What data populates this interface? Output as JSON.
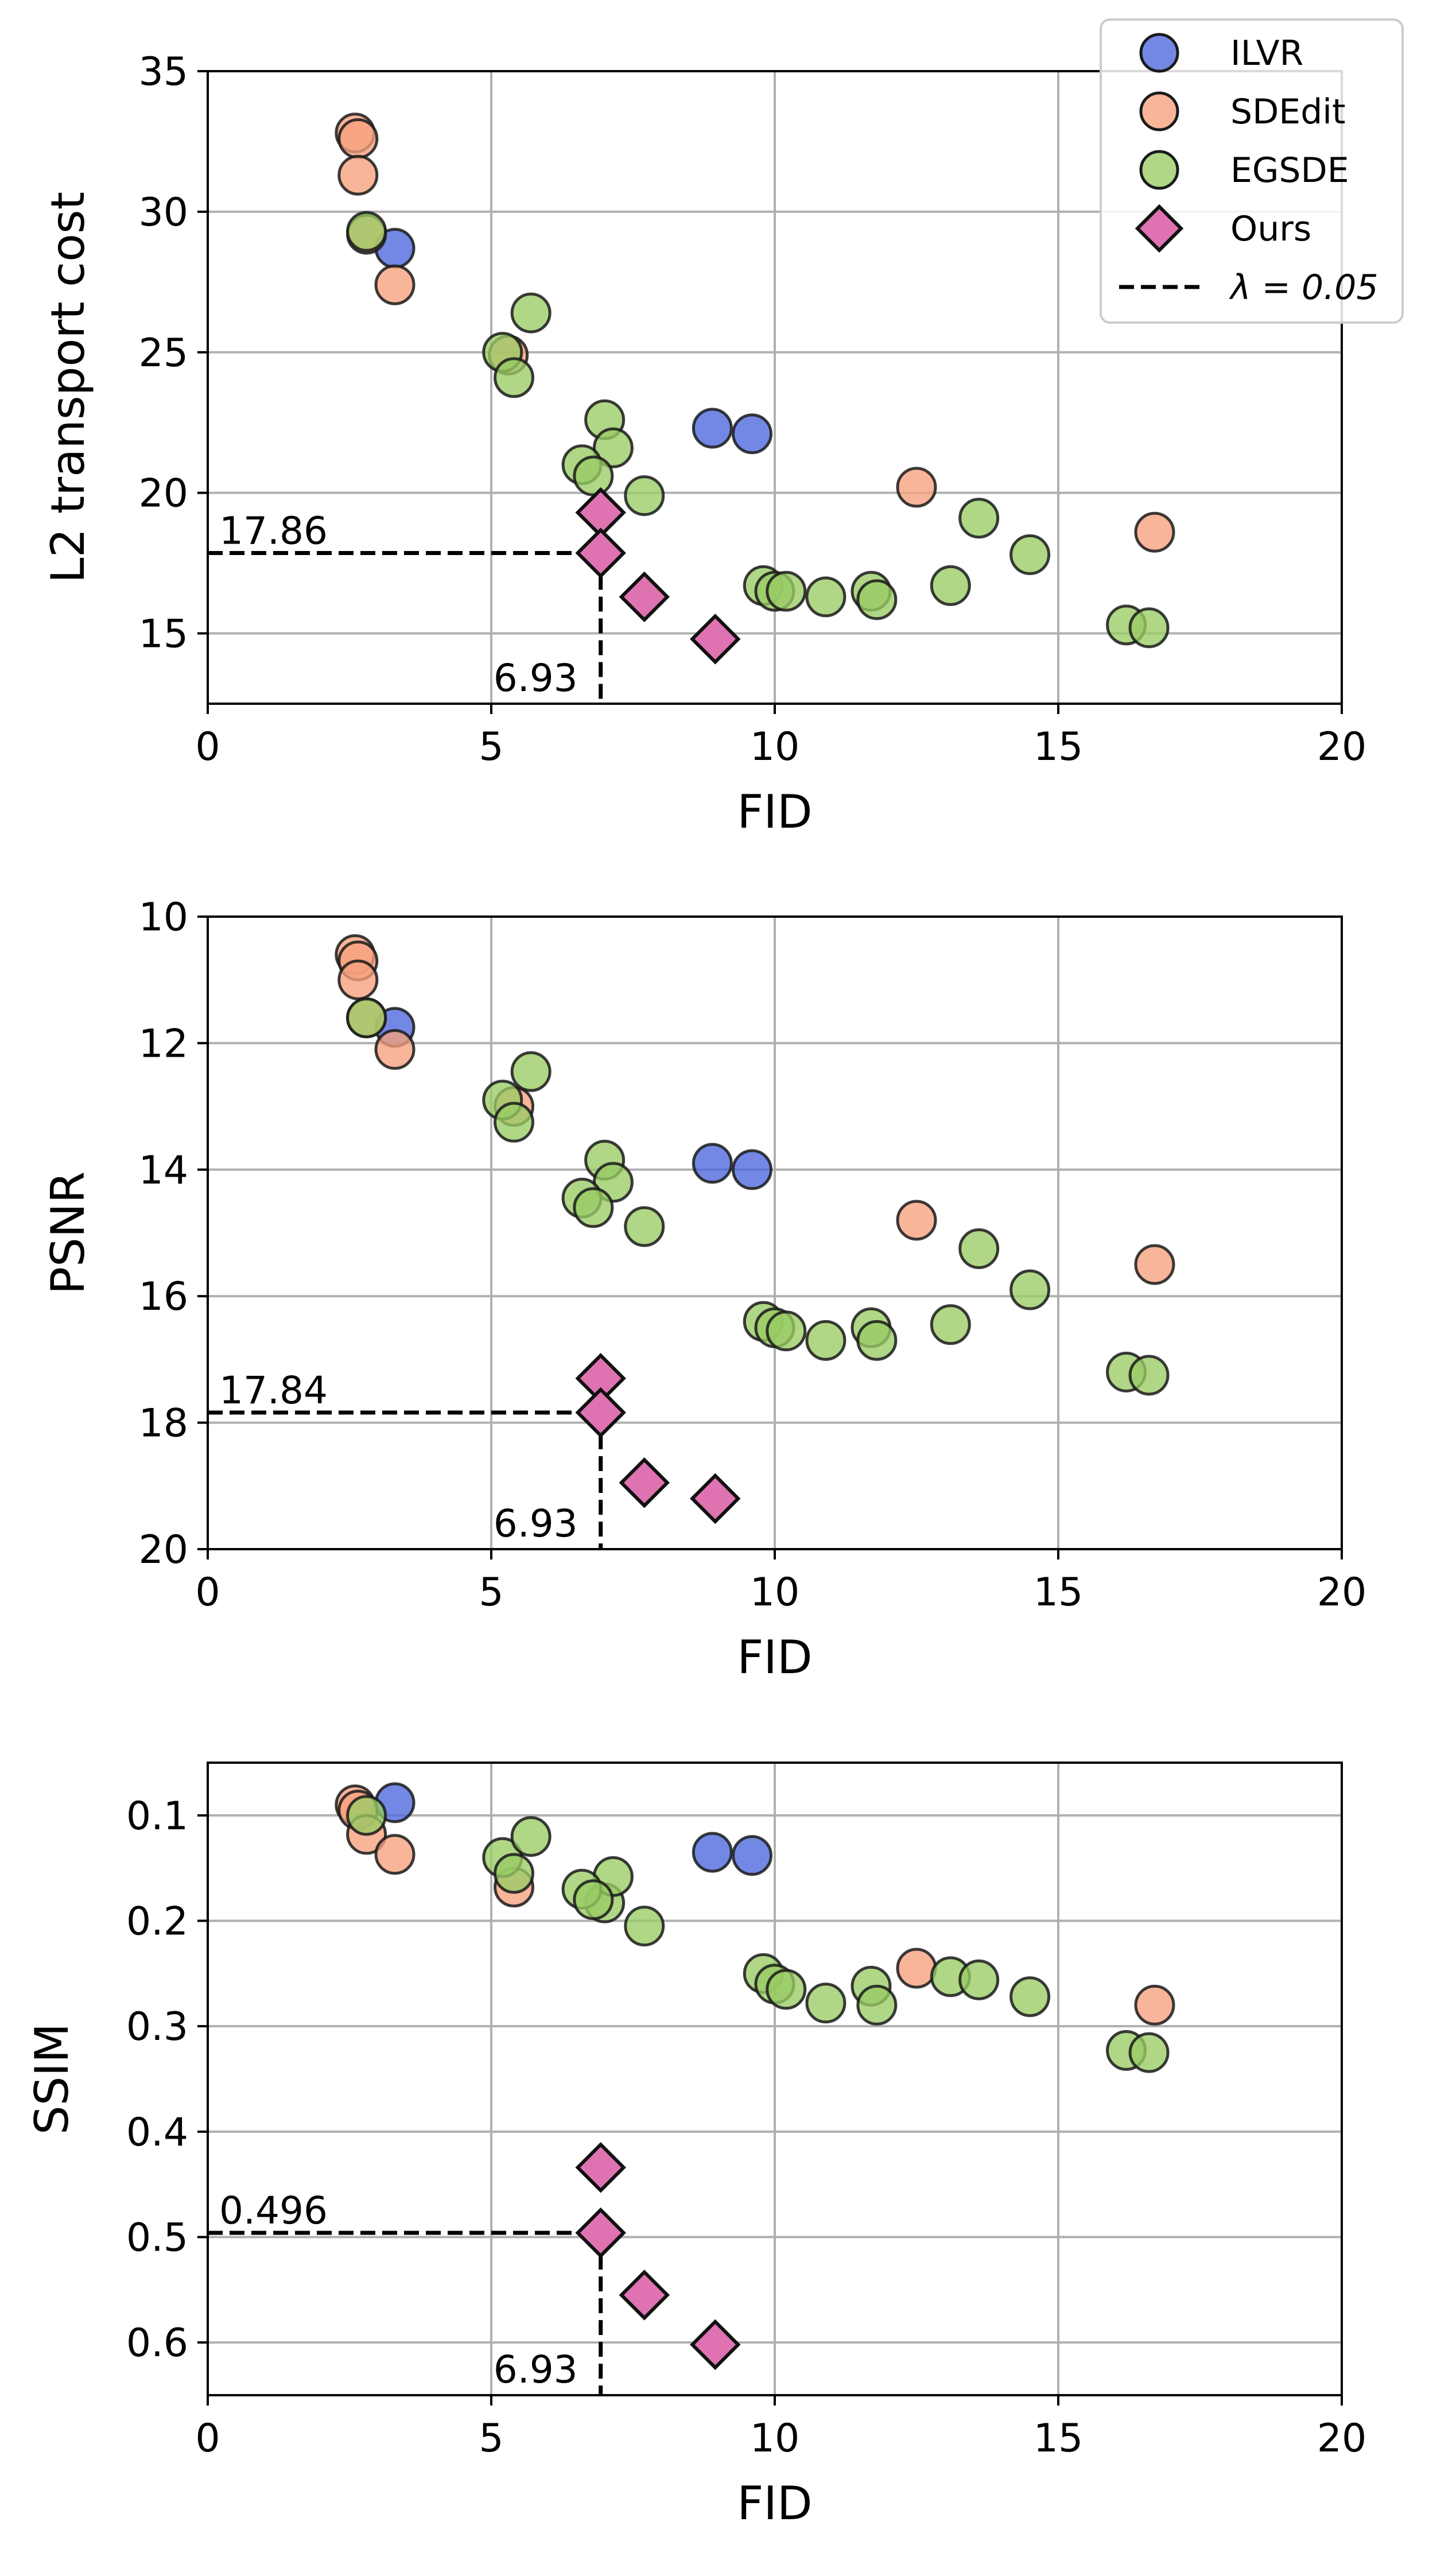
{
  "colors": {
    "ILVR": "#4b66dd",
    "SDEdit": "#f7a07e",
    "EGSDE": "#98cc64",
    "Ours": "#df73b2",
    "grid": "#b0b0b0",
    "guide": "#000000"
  },
  "legend": {
    "entries": [
      {
        "label": "ILVR",
        "marker": "circle",
        "color_key": "ILVR"
      },
      {
        "label": "SDEdit",
        "marker": "circle",
        "color_key": "SDEdit"
      },
      {
        "label": "EGSDE",
        "marker": "circle",
        "color_key": "EGSDE"
      },
      {
        "label": "Ours",
        "marker": "diamond",
        "color_key": "Ours"
      },
      {
        "label": "λ = 0.05",
        "marker": "dashed-line",
        "color_key": "guide"
      }
    ],
    "placement": "top-right"
  },
  "chart_data": [
    {
      "type": "scatter",
      "xlabel": "FID",
      "ylabel": "L2 transport cost",
      "xlim": [
        0,
        20
      ],
      "ylim": [
        12.5,
        35
      ],
      "y_inverted": false,
      "xticks": [
        0,
        5,
        10,
        15,
        20
      ],
      "xtick_labels": [
        "0",
        "5",
        "10",
        "15",
        "20"
      ],
      "yticks": [
        15,
        20,
        25,
        30,
        35
      ],
      "ytick_labels": [
        "15",
        "20",
        "25",
        "30",
        "35"
      ],
      "grid": true,
      "guide": {
        "x": 6.93,
        "y": 17.86,
        "x_label": "6.93",
        "y_label": "17.86"
      },
      "series": [
        {
          "name": "ILVR",
          "x": [
            3.3,
            8.9,
            9.6
          ],
          "y": [
            28.7,
            22.3,
            22.1
          ]
        },
        {
          "name": "SDEdit",
          "x": [
            2.6,
            2.65,
            2.65,
            2.8,
            3.3,
            5.3,
            12.5,
            16.7
          ],
          "y": [
            32.8,
            32.6,
            31.3,
            29.2,
            27.4,
            24.9,
            20.2,
            18.6
          ]
        },
        {
          "name": "EGSDE",
          "x": [
            2.8,
            5.2,
            5.4,
            5.7,
            7.0,
            7.15,
            6.6,
            6.8,
            7.7,
            9.8,
            10.0,
            10.2,
            10.9,
            11.7,
            11.8,
            13.1,
            13.6,
            14.5,
            16.2,
            16.6
          ],
          "y": [
            29.3,
            25.0,
            24.1,
            26.4,
            22.6,
            21.6,
            21.0,
            20.6,
            19.9,
            16.7,
            16.5,
            16.5,
            16.3,
            16.5,
            16.2,
            16.7,
            19.1,
            17.8,
            15.3,
            15.2
          ]
        },
        {
          "name": "Ours",
          "x": [
            6.93,
            6.93,
            7.7,
            8.95
          ],
          "y": [
            19.3,
            17.86,
            16.3,
            14.8
          ]
        }
      ]
    },
    {
      "type": "scatter",
      "xlabel": "FID",
      "ylabel": "PSNR",
      "xlim": [
        0,
        20
      ],
      "ylim": [
        10,
        20
      ],
      "y_inverted": true,
      "xticks": [
        0,
        5,
        10,
        15,
        20
      ],
      "xtick_labels": [
        "0",
        "5",
        "10",
        "15",
        "20"
      ],
      "yticks": [
        10,
        12,
        14,
        16,
        18,
        20
      ],
      "ytick_labels": [
        "10",
        "12",
        "14",
        "16",
        "18",
        "20"
      ],
      "grid": true,
      "guide": {
        "x": 6.93,
        "y": 17.84,
        "x_label": "6.93",
        "y_label": "17.84"
      },
      "series": [
        {
          "name": "ILVR",
          "x": [
            3.3,
            8.9,
            9.6
          ],
          "y": [
            11.75,
            13.9,
            14.0
          ]
        },
        {
          "name": "SDEdit",
          "x": [
            2.6,
            2.65,
            2.65,
            2.8,
            3.3,
            5.4,
            12.5,
            16.7
          ],
          "y": [
            10.6,
            10.7,
            11.0,
            11.6,
            12.1,
            13.0,
            14.8,
            15.5
          ]
        },
        {
          "name": "EGSDE",
          "x": [
            2.8,
            5.2,
            5.4,
            5.7,
            7.0,
            7.15,
            6.6,
            6.8,
            7.7,
            9.8,
            10.0,
            10.2,
            10.9,
            11.7,
            11.8,
            13.1,
            13.6,
            14.5,
            16.2,
            16.6
          ],
          "y": [
            11.6,
            12.9,
            13.25,
            12.45,
            13.85,
            14.2,
            14.45,
            14.6,
            14.9,
            16.4,
            16.5,
            16.55,
            16.7,
            16.5,
            16.7,
            16.45,
            15.25,
            15.9,
            17.2,
            17.25
          ]
        },
        {
          "name": "Ours",
          "x": [
            6.93,
            6.93,
            7.7,
            8.95
          ],
          "y": [
            17.3,
            17.84,
            18.95,
            19.2
          ]
        }
      ]
    },
    {
      "type": "scatter",
      "xlabel": "FID",
      "ylabel": "SSIM",
      "xlim": [
        0,
        20
      ],
      "ylim": [
        0.05,
        0.65
      ],
      "y_inverted": true,
      "xticks": [
        0,
        5,
        10,
        15,
        20
      ],
      "xtick_labels": [
        "0",
        "5",
        "10",
        "15",
        "20"
      ],
      "yticks": [
        0.1,
        0.2,
        0.3,
        0.4,
        0.5,
        0.6
      ],
      "ytick_labels": [
        "0.1",
        "0.2",
        "0.3",
        "0.4",
        "0.5",
        "0.6"
      ],
      "grid": true,
      "guide": {
        "x": 6.93,
        "y": 0.496,
        "x_label": "6.93",
        "y_label": "0.496"
      },
      "series": [
        {
          "name": "ILVR",
          "x": [
            3.3,
            8.9,
            9.6
          ],
          "y": [
            0.088,
            0.135,
            0.138
          ]
        },
        {
          "name": "SDEdit",
          "x": [
            2.6,
            2.65,
            2.8,
            3.3,
            5.4,
            12.5,
            16.7
          ],
          "y": [
            0.09,
            0.095,
            0.118,
            0.137,
            0.168,
            0.245,
            0.28
          ]
        },
        {
          "name": "EGSDE",
          "x": [
            2.8,
            5.2,
            5.4,
            5.7,
            7.0,
            7.15,
            6.6,
            6.8,
            7.7,
            9.8,
            10.0,
            10.2,
            10.9,
            11.7,
            11.8,
            13.1,
            13.6,
            14.5,
            16.2,
            16.6
          ],
          "y": [
            0.1,
            0.14,
            0.155,
            0.12,
            0.183,
            0.158,
            0.17,
            0.18,
            0.205,
            0.25,
            0.26,
            0.265,
            0.278,
            0.262,
            0.28,
            0.253,
            0.256,
            0.272,
            0.323,
            0.325
          ]
        },
        {
          "name": "Ours",
          "x": [
            6.93,
            6.93,
            7.7,
            8.95
          ],
          "y": [
            0.434,
            0.496,
            0.555,
            0.602
          ]
        }
      ]
    }
  ]
}
